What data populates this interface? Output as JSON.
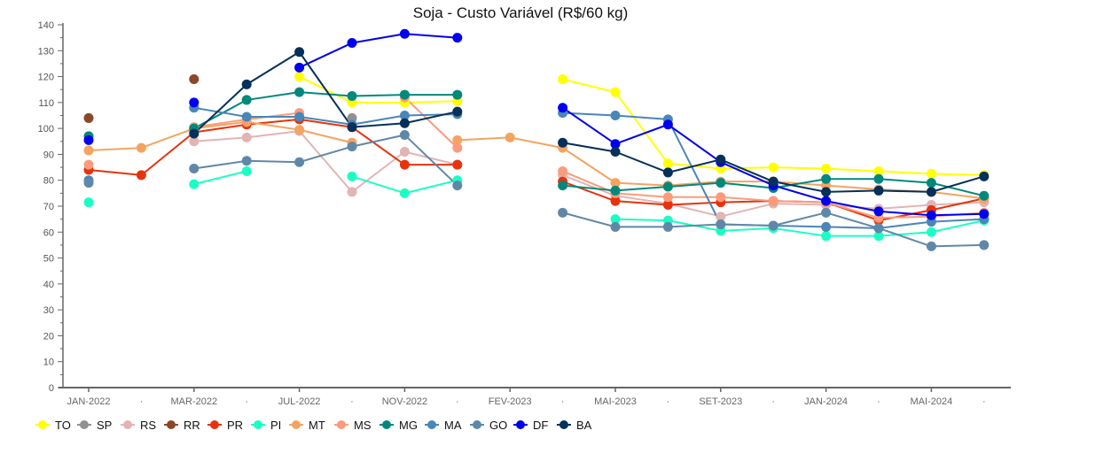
{
  "chart_data": {
    "type": "line",
    "title": "Soja - Custo Variável (R$/60 kg)",
    "xlabel": "",
    "ylabel": "",
    "ylim": [
      0,
      140
    ],
    "yticks": [
      0,
      10,
      20,
      30,
      40,
      50,
      60,
      70,
      80,
      90,
      100,
      110,
      120,
      130,
      140
    ],
    "grid": false,
    "legend": "bottom-left",
    "categories": [
      "JAN-2022",
      "·",
      "MAR-2022",
      "·",
      "JUL-2022",
      "·",
      "NOV-2022",
      "·",
      "FEV-2023",
      "·",
      "MAI-2023",
      "·",
      "SET-2023",
      "·",
      "JAN-2024",
      "·",
      "MAI-2024",
      "·"
    ],
    "series": [
      {
        "name": "TO",
        "color": "#ffff00",
        "values": [
          null,
          null,
          110,
          null,
          120,
          110,
          110,
          110.5,
          null,
          119,
          114,
          86.5,
          84.5,
          85,
          84.5,
          83.5,
          82.5,
          82
        ]
      },
      {
        "name": "SP",
        "color": "#909090",
        "values": [
          null,
          null,
          null,
          null,
          null,
          104,
          null,
          null,
          null,
          null,
          null,
          null,
          null,
          null,
          null,
          null,
          null,
          null
        ]
      },
      {
        "name": "RS",
        "color": "#e2b4b4",
        "values": [
          null,
          null,
          95,
          96.5,
          99,
          75.5,
          91,
          86,
          null,
          82,
          74,
          71,
          66,
          71,
          70.5,
          69,
          70.5,
          71.5
        ]
      },
      {
        "name": "RR",
        "color": "#8b4726",
        "values": [
          104,
          null,
          119,
          null,
          null,
          null,
          null,
          null,
          null,
          null,
          null,
          null,
          null,
          null,
          null,
          null,
          null,
          null
        ]
      },
      {
        "name": "PR",
        "color": "#e8320c",
        "values": [
          84,
          82,
          98.5,
          101.5,
          103.5,
          100.5,
          86,
          86,
          null,
          79.5,
          72,
          70.5,
          71.5,
          72,
          71.5,
          64.5,
          68.5,
          73
        ]
      },
      {
        "name": "PI",
        "color": "#1affc3",
        "values": [
          71.5,
          null,
          78.5,
          83.5,
          null,
          81.5,
          75,
          80,
          null,
          null,
          65,
          64.5,
          60.5,
          61.5,
          58.5,
          58.5,
          60,
          64.5
        ]
      },
      {
        "name": "MT",
        "color": "#f4a460",
        "values": [
          91.5,
          92.5,
          100,
          102.5,
          99.5,
          94.5,
          null,
          95.5,
          96.5,
          92.5,
          79,
          78,
          79.5,
          79.5,
          78,
          76.5,
          75.5,
          73
        ]
      },
      {
        "name": "MS",
        "color": "#fa9c7c",
        "values": [
          86,
          null,
          100.5,
          103.5,
          106,
          null,
          112,
          92.5,
          null,
          83.5,
          75,
          73.5,
          73.5,
          72,
          71.5,
          65.5,
          66,
          67.5
        ]
      },
      {
        "name": "MG",
        "color": "#00897b",
        "values": [
          97,
          null,
          100,
          111,
          114,
          112.5,
          113,
          113,
          null,
          78,
          76,
          77.5,
          79,
          77,
          80.5,
          80.5,
          79,
          74
        ]
      },
      {
        "name": "MA",
        "color": "#4a86b8",
        "values": [
          80,
          null,
          108,
          104.5,
          104.5,
          101.5,
          105,
          105.5,
          null,
          106,
          105,
          103.5,
          63,
          62.5,
          62,
          61.5,
          64,
          65
        ]
      },
      {
        "name": "GO",
        "color": "#5f88a8",
        "values": [
          79,
          null,
          84.5,
          87.5,
          87,
          93,
          97.5,
          78,
          null,
          67.5,
          62,
          62,
          63,
          62.5,
          67.5,
          61.5,
          54.5,
          55
        ]
      },
      {
        "name": "DF",
        "color": "#0000ee",
        "values": [
          95.5,
          null,
          110,
          null,
          123.5,
          133,
          136.5,
          135,
          null,
          108,
          94,
          101.5,
          87,
          78,
          72,
          68,
          66.5,
          67
        ]
      },
      {
        "name": "BA",
        "color": "#04305a",
        "values": [
          null,
          null,
          98,
          117,
          129.5,
          100.5,
          102,
          106.5,
          null,
          94.5,
          91,
          83,
          88,
          79.5,
          75.5,
          76,
          75.5,
          81.5
        ]
      }
    ]
  }
}
